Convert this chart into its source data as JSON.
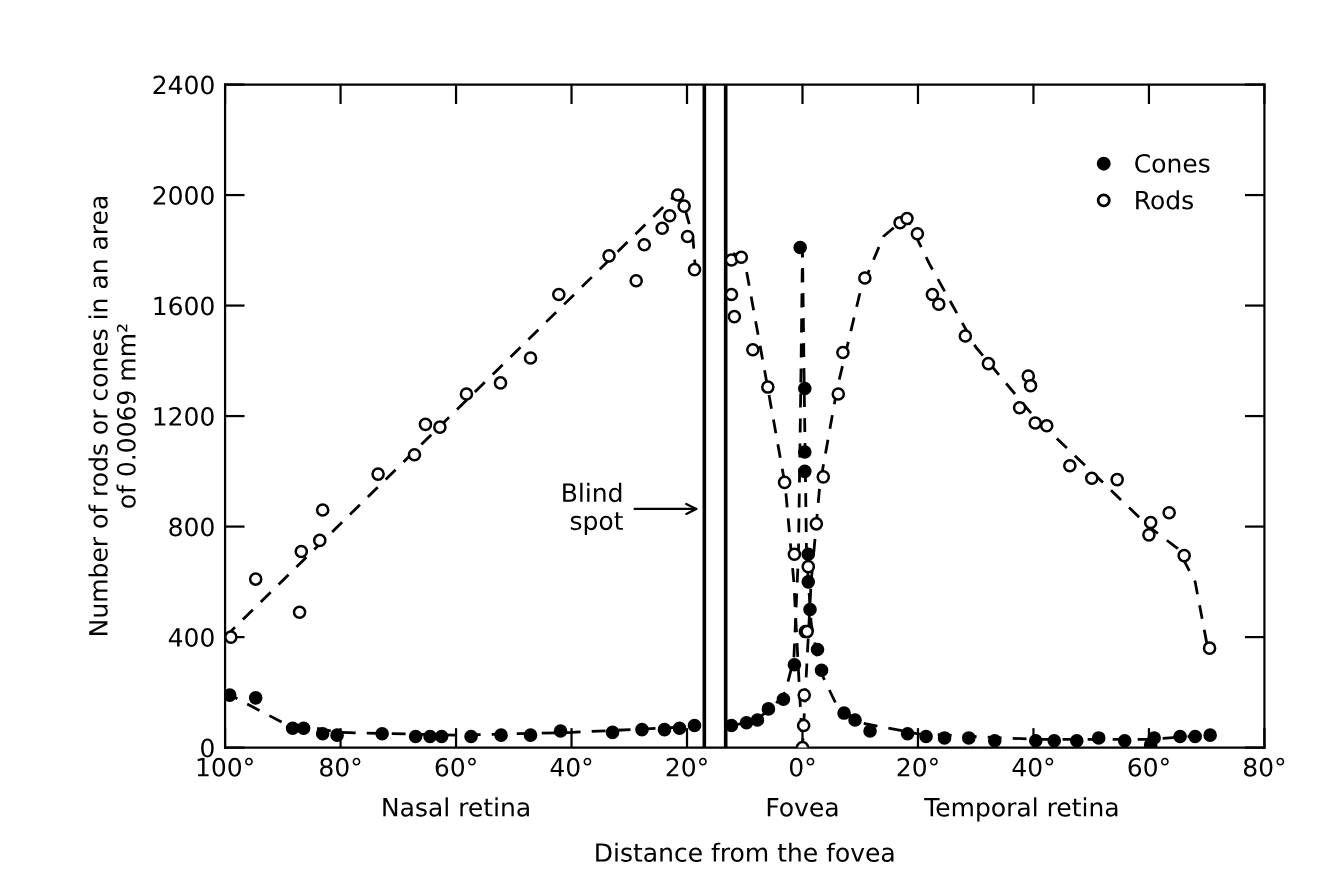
{
  "chart_data": {
    "type": "scatter",
    "xlabel": "Distance from the fovea",
    "ylabel": "Number of rods or cones in an area\nof 0.0069 mm²",
    "xlim": [
      -100,
      80
    ],
    "ylim": [
      0,
      2400
    ],
    "xticks": [
      {
        "value": -100,
        "label": "100°"
      },
      {
        "value": -80,
        "label": "80°"
      },
      {
        "value": -60,
        "label": "60°"
      },
      {
        "value": -40,
        "label": "40°"
      },
      {
        "value": -20,
        "label": "20°"
      },
      {
        "value": 0,
        "label": "0°"
      },
      {
        "value": 20,
        "label": "20°"
      },
      {
        "value": 40,
        "label": "40°"
      },
      {
        "value": 60,
        "label": "60°"
      },
      {
        "value": 80,
        "label": "80°"
      }
    ],
    "yticks": [
      0,
      400,
      800,
      1200,
      1600,
      2000,
      2400
    ],
    "grid": false,
    "legend": "top right",
    "ref_lines": [
      {
        "axis": "x",
        "value": -17,
        "label": "Blind\nspot",
        "color": "#000000"
      },
      {
        "axis": "x",
        "value": -13.3,
        "color": "#000000"
      }
    ],
    "annotations": [
      "Nasal retina",
      "Fovea",
      "Temporal retina"
    ],
    "series": [
      {
        "name": "Cones",
        "color": "#000000",
        "marker": "circle",
        "x": [
          -99.2,
          -94.7,
          -88.3,
          -86.4,
          -83.1,
          -80.6,
          -72.8,
          -67.0,
          -64.5,
          -62.5,
          -57.4,
          -52.2,
          -47.1,
          -41.9,
          -32.9,
          -27.8,
          -23.9,
          -21.3,
          -18.7,
          -12.3,
          -9.7,
          -7.8,
          -5.9,
          -3.3,
          -1.4,
          -0.4,
          0.4,
          0.4,
          0.4,
          1.0,
          1.0,
          1.3,
          2.6,
          3.3,
          7.2,
          9.1,
          11.7,
          18.2,
          21.4,
          24.6,
          28.8,
          33.3,
          40.4,
          43.6,
          47.5,
          51.3,
          55.8,
          60.3,
          60.9,
          65.4,
          68.0,
          70.6
        ],
        "values": [
          190,
          180,
          70,
          70,
          50,
          45,
          50,
          40,
          40,
          40,
          40,
          45,
          45,
          60,
          55,
          65,
          65,
          70,
          80,
          80,
          90,
          100,
          140,
          175,
          300,
          1810,
          1300,
          1070,
          1000,
          700,
          600,
          500,
          355,
          280,
          125,
          100,
          60,
          50,
          40,
          35,
          35,
          25,
          25,
          25,
          25,
          35,
          25,
          10,
          35,
          40,
          40,
          45
        ]
      },
      {
        "name": "Rods",
        "color": "#ffffff",
        "marker": "circle",
        "x": [
          -99,
          -94.7,
          -87.1,
          -86.8,
          -83.6,
          -83.1,
          -73.5,
          -67.2,
          -65.3,
          -62.8,
          -58.2,
          -52.3,
          -47.1,
          -42.2,
          -33.5,
          -28.8,
          -27.4,
          -24.3,
          -23.0,
          -21.6,
          -20.5,
          -19.9,
          -18.7,
          -12.3,
          -10.6,
          -12.3,
          -11.8,
          -8.6,
          -6.0,
          -3.1,
          -1.4,
          0,
          0.2,
          0.3,
          0.5,
          0.8,
          1.0,
          2.4,
          3.6,
          6.2,
          7.0,
          10.8,
          16.9,
          18.1,
          19.9,
          22.5,
          23.6,
          28.2,
          32.2,
          37.6,
          39.1,
          39.5,
          40.3,
          42.3,
          46.3,
          50.1,
          54.5,
          60.0,
          60.3,
          63.5,
          66.1,
          70.5
        ],
        "values": [
          400,
          610,
          490,
          710,
          750,
          860,
          990,
          1060,
          1170,
          1160,
          1280,
          1320,
          1410,
          1640,
          1780,
          1690,
          1820,
          1880,
          1925,
          2000,
          1960,
          1850,
          1730,
          1765,
          1775,
          1640,
          1560,
          1440,
          1305,
          960,
          700,
          0,
          80,
          190,
          420,
          420,
          655,
          810,
          980,
          1280,
          1430,
          1700,
          1900,
          1915,
          1860,
          1640,
          1605,
          1490,
          1390,
          1230,
          1345,
          1310,
          1175,
          1165,
          1020,
          975,
          970,
          770,
          815,
          850,
          695,
          360
        ]
      },
      {
        "type": "line",
        "color": "#000000",
        "line_style": "dashed",
        "x": [
          -100,
          -90,
          -80,
          -60,
          -40,
          -20,
          -18.5,
          -16,
          -12,
          -8,
          -5,
          -3,
          -1.5,
          -0.7,
          -0.3,
          0,
          0.3,
          0.7,
          1.5,
          3,
          6,
          10,
          20,
          40,
          60,
          70
        ],
        "values": [
          200,
          90,
          55,
          45,
          55,
          75,
          80,
          null,
          80,
          100,
          150,
          200,
          320,
          700,
          1300,
          1800,
          1300,
          700,
          450,
          280,
          150,
          90,
          50,
          30,
          30,
          45
        ]
      },
      {
        "type": "line",
        "color": "#000000",
        "line_style": "dashed",
        "x": [
          -100,
          -22,
          -20.5,
          -19,
          -18.5,
          -16,
          -12,
          -10,
          -6,
          -3,
          -1.5,
          -0.5,
          0,
          0.5,
          1.5,
          3,
          6,
          10,
          14,
          18,
          22,
          30,
          40,
          50,
          60,
          65,
          68,
          70
        ],
        "values": [
          400,
          2000,
          1960,
          1850,
          1720,
          null,
          1790,
          1760,
          1300,
          950,
          600,
          200,
          0,
          200,
          600,
          950,
          1300,
          1650,
          1850,
          1920,
          1750,
          1450,
          1200,
          1000,
          800,
          720,
          600,
          380
        ]
      }
    ]
  }
}
